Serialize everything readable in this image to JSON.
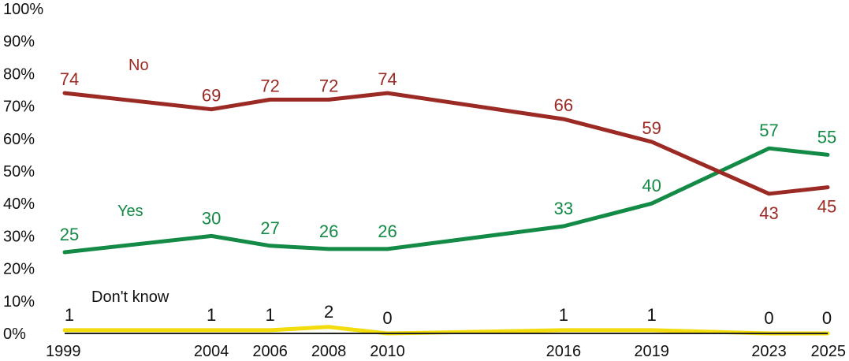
{
  "chart_data": {
    "type": "line",
    "title": "",
    "xlabel": "",
    "ylabel": "",
    "x": [
      1999,
      2004,
      2006,
      2008,
      2010,
      2016,
      2019,
      2023,
      2025
    ],
    "x_tick_labels": [
      "1999",
      "2004",
      "2006",
      "2008",
      "2010",
      "2016",
      "2019",
      "2023",
      "2025"
    ],
    "ylim": [
      0,
      100
    ],
    "y_tick_labels": [
      "0%",
      "10%",
      "20%",
      "30%",
      "40%",
      "50%",
      "60%",
      "70%",
      "80%",
      "90%",
      "100%"
    ],
    "grid": false,
    "legend": "inline labels next to each line",
    "series": [
      {
        "name": "No",
        "color": "#9b2a24",
        "values": [
          74,
          69,
          72,
          72,
          74,
          66,
          59,
          43,
          45
        ],
        "labels": [
          "74",
          "69",
          "72",
          "72",
          "74",
          "66",
          "59",
          "43",
          "45"
        ]
      },
      {
        "name": "Yes",
        "color": "#138a45",
        "values": [
          25,
          30,
          27,
          26,
          26,
          33,
          40,
          57,
          55
        ],
        "labels": [
          "25",
          "30",
          "27",
          "26",
          "26",
          "33",
          "40",
          "57",
          "55"
        ]
      },
      {
        "name": "Don't know",
        "color": "#f2dc0c",
        "values": [
          1,
          1,
          1,
          2,
          0,
          1,
          1,
          0,
          0
        ],
        "labels": [
          "1",
          "1",
          "1",
          "2",
          "0",
          "1",
          "1",
          "0",
          "0"
        ]
      }
    ]
  }
}
